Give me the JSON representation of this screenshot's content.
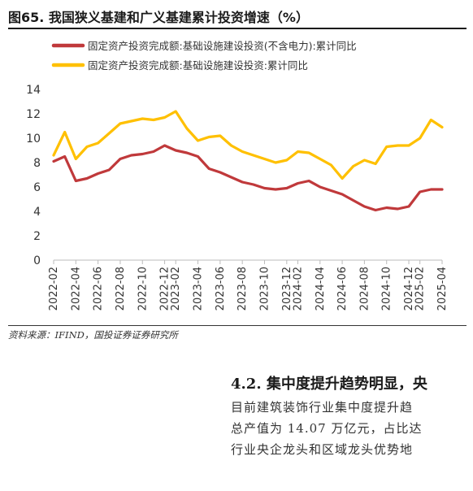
{
  "figure_title": "图65. 我国狭义基建和广义基建累计投资增速（%）",
  "source_note": "资料来源：IFIND，国投证券证券研究所",
  "section_heading": "4.2. 集中度提升趋势明显，央",
  "paragraph_lines": [
    "目前建筑装饰行业集中度提升趋",
    "总产值为 14.07 万亿元，占比达",
    "行业央企龙头和区域龙头优势地"
  ],
  "chart_data": {
    "type": "line",
    "x": [
      "2022-02",
      "2022-03",
      "2022-04",
      "2022-05",
      "2022-06",
      "2022-07",
      "2022-08",
      "2022-09",
      "2022-10",
      "2022-11",
      "2022-12",
      "2023-02",
      "2023-03",
      "2023-04",
      "2023-05",
      "2023-06",
      "2023-07",
      "2023-08",
      "2023-09",
      "2023-10",
      "2023-11",
      "2023-12",
      "2024-02",
      "2024-03",
      "2024-04",
      "2024-05",
      "2024-06",
      "2024-07",
      "2024-08",
      "2024-09",
      "2024-10",
      "2024-11",
      "2024-12",
      "2025-02",
      "2025-03",
      "2025-04"
    ],
    "xticks": [
      "2022-02",
      "2022-04",
      "2022-06",
      "2022-08",
      "2022-10",
      "2022-12",
      "2023-02",
      "2023-04",
      "2023-06",
      "2023-08",
      "2023-10",
      "2023-12",
      "2024-02",
      "2024-04",
      "2024-06",
      "2024-08",
      "2024-10",
      "2024-12",
      "2025-02",
      "2025-04"
    ],
    "series": [
      {
        "name": "固定资产投资完成额:基础设施建设投资(不含电力):累计同比",
        "color": "#c0393b",
        "values": [
          8.1,
          8.5,
          6.5,
          6.7,
          7.1,
          7.4,
          8.3,
          8.6,
          8.7,
          8.9,
          9.4,
          9.0,
          8.8,
          8.5,
          7.5,
          7.2,
          6.8,
          6.4,
          6.2,
          5.9,
          5.8,
          5.9,
          6.3,
          6.5,
          6.0,
          5.7,
          5.4,
          4.9,
          4.4,
          4.1,
          4.3,
          4.2,
          4.4,
          5.6,
          5.8,
          5.8
        ]
      },
      {
        "name": "固定资产投资完成额:基础设施建设投资:累计同比",
        "color": "#ffc000",
        "values": [
          8.6,
          10.5,
          8.3,
          9.3,
          9.6,
          10.4,
          11.2,
          11.4,
          11.6,
          11.5,
          11.7,
          12.2,
          10.8,
          9.8,
          10.1,
          10.2,
          9.4,
          8.9,
          8.6,
          8.3,
          8.0,
          8.2,
          8.9,
          8.8,
          8.3,
          7.8,
          6.7,
          7.7,
          8.2,
          7.9,
          9.3,
          9.4,
          9.4,
          10.0,
          11.5,
          10.9
        ]
      }
    ],
    "ylim": [
      0,
      14
    ],
    "yticks": [
      0,
      2,
      4,
      6,
      8,
      10,
      12,
      14
    ],
    "xlabel": "",
    "ylabel": "",
    "grid": false,
    "legend_position": "top-left"
  }
}
